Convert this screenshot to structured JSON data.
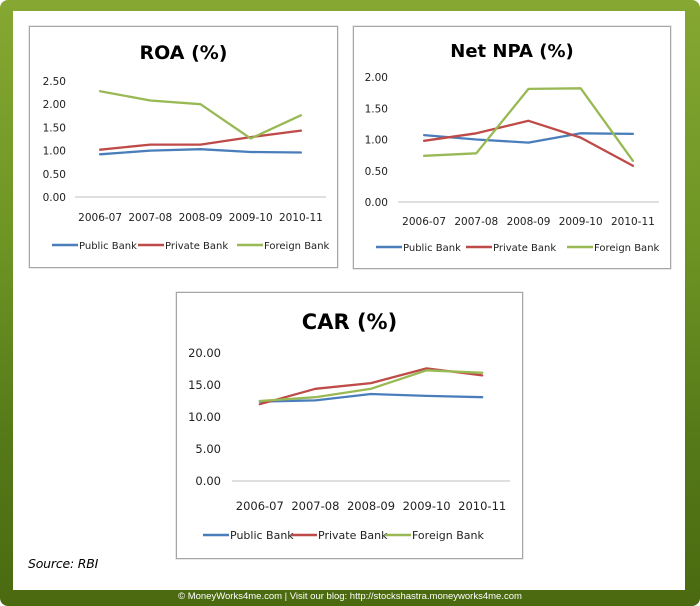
{
  "page": {
    "source_label": "Source: RBI",
    "footer_text": "© MoneyWorks4me.com | Visit our blog: http://stockshastra.moneyworks4me.com"
  },
  "colors": {
    "frame_top": "#86a832",
    "frame_bottom": "#4b6a10",
    "public_bank": "#4a7ebb",
    "private_bank": "#be4b48",
    "foreign_bank": "#98b954"
  },
  "chart_data": [
    {
      "id": "roa",
      "type": "line",
      "title": "ROA (%)",
      "xlabel": "",
      "ylabel": "",
      "categories": [
        "2006-07",
        "2007-08",
        "2008-09",
        "2009-10",
        "2010-11"
      ],
      "ylim": [
        0,
        2.5
      ],
      "yticks": [
        "0.00",
        "0.50",
        "1.00",
        "1.50",
        "2.00",
        "2.50"
      ],
      "ytick_values": [
        0,
        0.5,
        1.0,
        1.5,
        2.0,
        2.5
      ],
      "grid": false,
      "legend": "bottom",
      "series": [
        {
          "name": "Public Bank",
          "color": "#4a7ebb",
          "values": [
            0.92,
            1.0,
            1.03,
            0.97,
            0.96
          ]
        },
        {
          "name": "Private Bank",
          "color": "#be4b48",
          "values": [
            1.02,
            1.13,
            1.13,
            1.29,
            1.43
          ]
        },
        {
          "name": "Foreign Bank",
          "color": "#98b954",
          "values": [
            2.28,
            2.08,
            2.0,
            1.26,
            1.76
          ]
        }
      ]
    },
    {
      "id": "net-npa",
      "type": "line",
      "title": "Net NPA (%)",
      "xlabel": "",
      "ylabel": "",
      "categories": [
        "2006-07",
        "2007-08",
        "2008-09",
        "2009-10",
        "2010-11"
      ],
      "ylim": [
        0,
        2.0
      ],
      "yticks": [
        "0.00",
        "0.50",
        "1.00",
        "1.50",
        "2.00"
      ],
      "ytick_values": [
        0,
        0.5,
        1.0,
        1.5,
        2.0
      ],
      "grid": false,
      "legend": "bottom",
      "series": [
        {
          "name": "Public Bank",
          "color": "#4a7ebb",
          "values": [
            1.07,
            1.0,
            0.95,
            1.1,
            1.09
          ]
        },
        {
          "name": "Private Bank",
          "color": "#be4b48",
          "values": [
            0.98,
            1.1,
            1.3,
            1.03,
            0.58
          ]
        },
        {
          "name": "Foreign Bank",
          "color": "#98b954",
          "values": [
            0.74,
            0.78,
            1.81,
            1.82,
            0.66
          ]
        }
      ]
    },
    {
      "id": "car",
      "type": "line",
      "title": "CAR (%)",
      "xlabel": "",
      "ylabel": "",
      "categories": [
        "2006-07",
        "2007-08",
        "2008-09",
        "2009-10",
        "2010-11"
      ],
      "ylim": [
        0,
        20
      ],
      "yticks": [
        "0.00",
        "5.00",
        "10.00",
        "15.00",
        "20.00"
      ],
      "ytick_values": [
        0,
        5,
        10,
        15,
        20
      ],
      "grid": false,
      "legend": "bottom",
      "series": [
        {
          "name": "Public Bank",
          "color": "#4a7ebb",
          "values": [
            12.4,
            12.6,
            13.6,
            13.3,
            13.1
          ]
        },
        {
          "name": "Private Bank",
          "color": "#be4b48",
          "values": [
            12.0,
            14.4,
            15.3,
            17.6,
            16.5
          ]
        },
        {
          "name": "Foreign Bank",
          "color": "#98b954",
          "values": [
            12.5,
            13.1,
            14.4,
            17.3,
            16.9
          ]
        }
      ]
    }
  ]
}
